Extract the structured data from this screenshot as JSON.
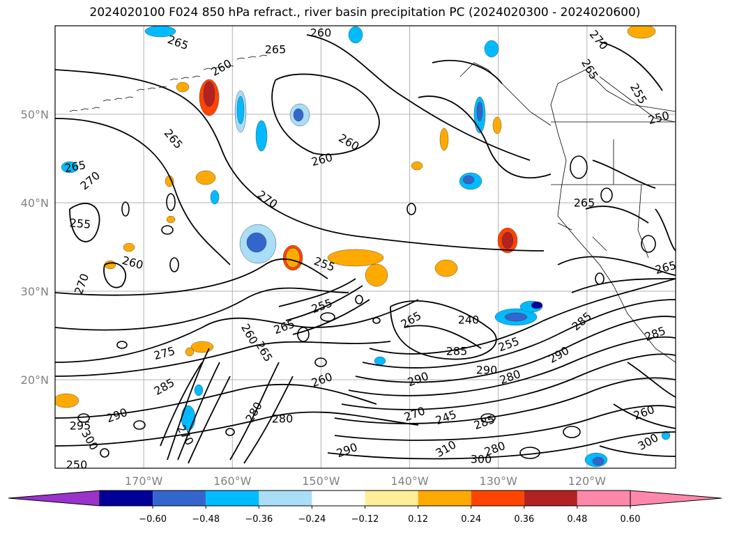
{
  "chart_data": {
    "type": "contour_map",
    "title": "2024020100 F024 850 hPa refract., river basin precipitation PC (2024020300 - 2024020600)",
    "lon_ticks": [
      "170°W",
      "160°W",
      "150°W",
      "140°W",
      "130°W",
      "120°W"
    ],
    "lon_values": [
      -170,
      -160,
      -150,
      -140,
      -130,
      -120
    ],
    "lat_ticks": [
      "50°N",
      "40°N",
      "30°N",
      "20°N"
    ],
    "lat_values": [
      50,
      40,
      30,
      20
    ],
    "lon_range": [
      -180,
      -110
    ],
    "lat_range": [
      10,
      60
    ],
    "grid": true,
    "colorbar": {
      "orientation": "horizontal",
      "extend": "both",
      "levels": [
        -0.72,
        -0.6,
        -0.48,
        -0.36,
        -0.24,
        -0.12,
        0.12,
        0.24,
        0.36,
        0.48,
        0.6,
        0.72
      ],
      "tick_labels": [
        "−0.60",
        "−0.48",
        "−0.36",
        "−0.24",
        "−0.12",
        "0.12",
        "0.24",
        "0.36",
        "0.48",
        "0.60"
      ],
      "colors": [
        "#9933cc",
        "#000099",
        "#3366cc",
        "#00bbff",
        "#aaddf7",
        "#ffffff",
        "#ffee99",
        "#ffaa00",
        "#ff4400",
        "#b22222",
        "#ff88aa"
      ]
    },
    "contour_labels": [
      "260",
      "265",
      "265",
      "260",
      "265",
      "265",
      "270",
      "270",
      "265",
      "250",
      "255",
      "260",
      "260",
      "255",
      "260",
      "270",
      "265",
      "255",
      "270",
      "265",
      "275",
      "285",
      "290",
      "295",
      "300",
      "280",
      "280",
      "285",
      "290",
      "290",
      "260",
      "265",
      "240",
      "285",
      "290",
      "255",
      "270",
      "280",
      "285",
      "290",
      "310",
      "300",
      "280",
      "300",
      "260",
      "265",
      "260",
      "255",
      "265",
      "245",
      "285",
      "250",
      "270"
    ]
  }
}
